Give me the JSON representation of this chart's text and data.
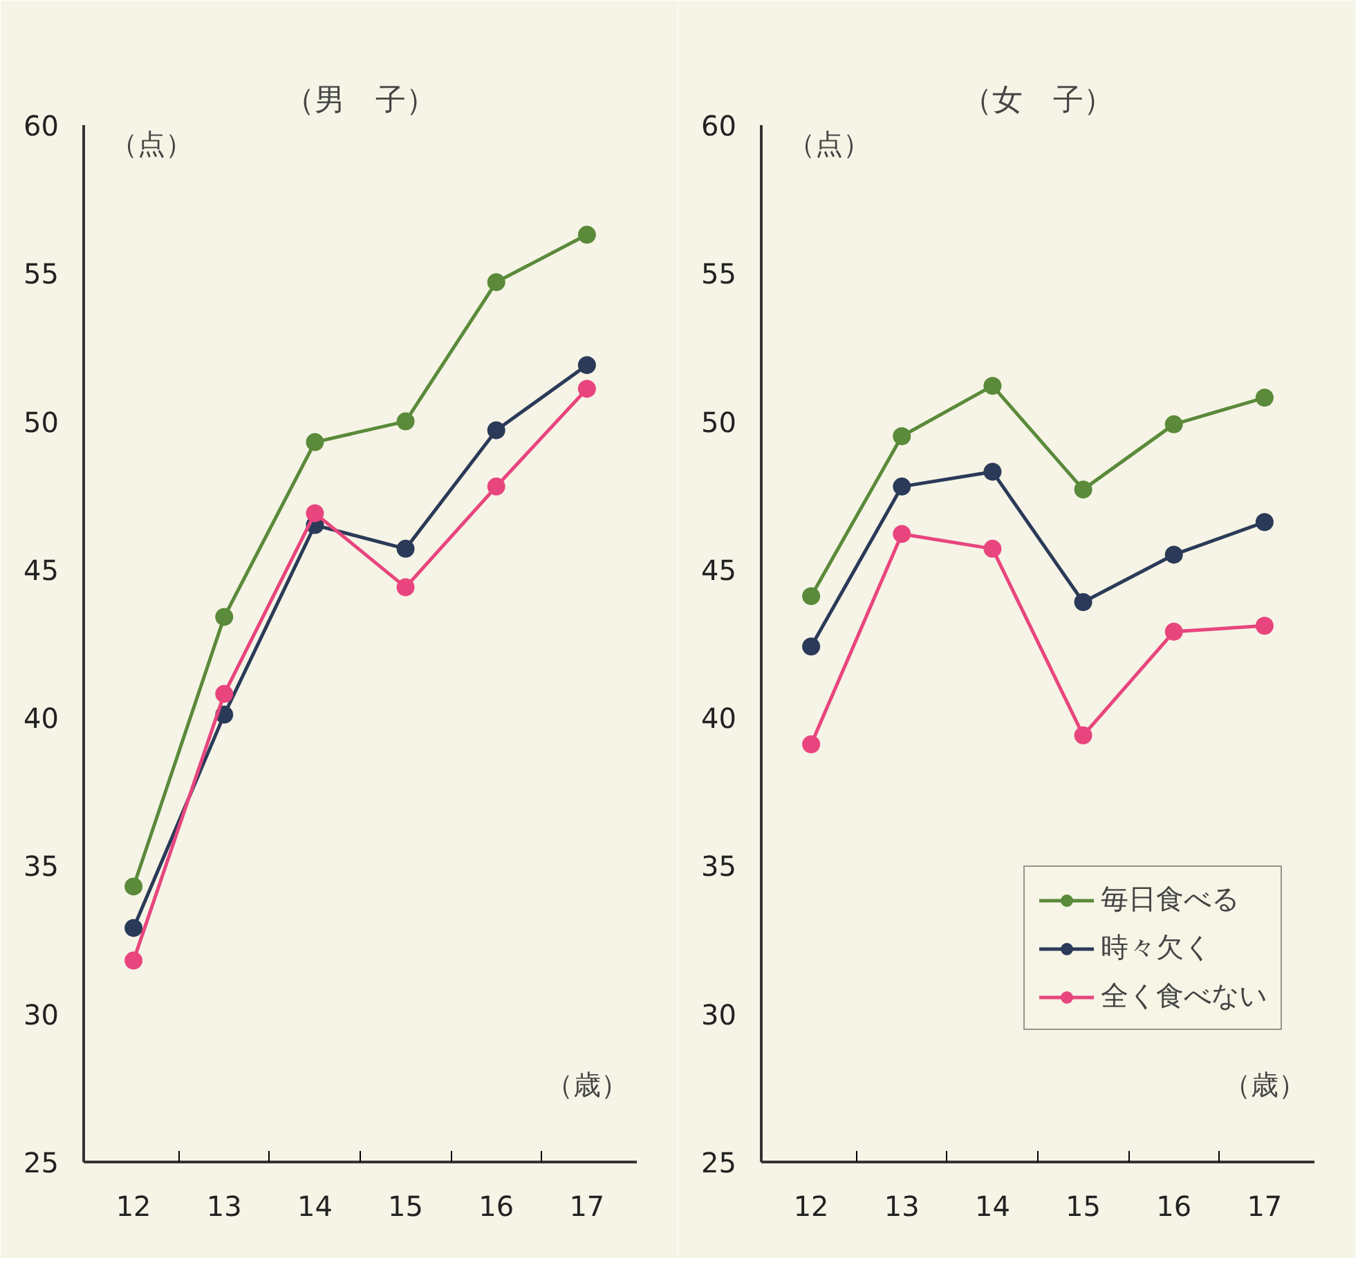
{
  "chart_data": [
    {
      "type": "line",
      "title": "（男　子）",
      "ylabel": "（点）",
      "xlabel": "（歳）",
      "categories": [
        "12",
        "13",
        "14",
        "15",
        "16",
        "17"
      ],
      "ylim": [
        25,
        60
      ],
      "yticks": [
        25,
        30,
        35,
        40,
        45,
        50,
        55,
        60
      ],
      "grid": false,
      "legend": false,
      "marker": "circle",
      "line_style": "solid",
      "series": [
        {
          "color": "#5a8a3a",
          "values": [
            34.3,
            43.4,
            49.3,
            50.0,
            54.7,
            56.3
          ]
        },
        {
          "color": "#2b3a58",
          "values": [
            32.9,
            40.1,
            46.5,
            45.7,
            49.7,
            51.9
          ]
        },
        {
          "color": "#e8457e",
          "values": [
            31.8,
            40.8,
            46.9,
            44.4,
            47.8,
            51.1
          ]
        }
      ]
    },
    {
      "type": "line",
      "title": "（女　子）",
      "ylabel": "（点）",
      "xlabel": "（歳）",
      "categories": [
        "12",
        "13",
        "14",
        "15",
        "16",
        "17"
      ],
      "ylim": [
        25,
        60
      ],
      "yticks": [
        25,
        30,
        35,
        40,
        45,
        50,
        55,
        60
      ],
      "grid": false,
      "legend": "bottom right",
      "marker": "circle",
      "line_style": "solid",
      "series": [
        {
          "name": "毎日食べる",
          "color": "#5a8a3a",
          "values": [
            44.1,
            49.5,
            51.2,
            47.7,
            49.9,
            50.8
          ]
        },
        {
          "name": "時々欠く",
          "color": "#2b3a58",
          "values": [
            42.4,
            47.8,
            48.3,
            43.9,
            45.5,
            46.6
          ]
        },
        {
          "name": "全く食べない",
          "color": "#e8457e",
          "values": [
            39.1,
            46.2,
            45.7,
            39.4,
            42.9,
            43.1
          ]
        }
      ]
    }
  ]
}
